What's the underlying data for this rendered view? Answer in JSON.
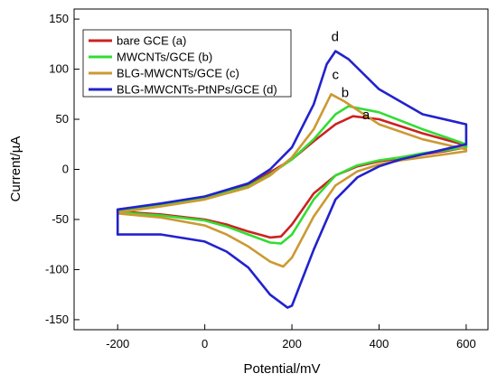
{
  "chart_data": {
    "type": "line",
    "title": "",
    "xlabel": "Potential/mV",
    "ylabel": "Current/µA",
    "xlim": [
      -300,
      650
    ],
    "ylim": [
      -160,
      160
    ],
    "xticks": [
      -200,
      0,
      200,
      400,
      600
    ],
    "yticks": [
      -150,
      -100,
      -50,
      0,
      50,
      100,
      150
    ],
    "grid": false,
    "legend_position": "top-left",
    "series": [
      {
        "name": "bare GCE (a)",
        "label": "a",
        "color": "#cc2222",
        "x": [
          -200,
          -100,
          0,
          100,
          150,
          200,
          250,
          300,
          340,
          400,
          500,
          600,
          600,
          550,
          500,
          450,
          400,
          350,
          300,
          250,
          200,
          175,
          150,
          100,
          50,
          0,
          -100,
          -200
        ],
        "y": [
          -40,
          -35,
          -28,
          -15,
          -3,
          10,
          28,
          45,
          53,
          50,
          36,
          24,
          22,
          18,
          15,
          11,
          8,
          3,
          -6,
          -24,
          -55,
          -67,
          -68,
          -62,
          -55,
          -50,
          -45,
          -42
        ]
      },
      {
        "name": "MWCNTs/GCE (b)",
        "label": "b",
        "color": "#33dd33",
        "x": [
          -200,
          -100,
          0,
          100,
          150,
          200,
          250,
          300,
          330,
          400,
          500,
          600,
          600,
          550,
          500,
          450,
          400,
          350,
          300,
          250,
          200,
          175,
          150,
          100,
          50,
          0,
          -100,
          -200
        ],
        "y": [
          -42,
          -36,
          -29,
          -17,
          -5,
          10,
          30,
          55,
          63,
          57,
          40,
          25,
          22,
          19,
          16,
          12,
          9,
          4,
          -6,
          -30,
          -65,
          -74,
          -73,
          -65,
          -57,
          -51,
          -46,
          -43
        ]
      },
      {
        "name": "BLG-MWCNTs/GCE (c)",
        "label": "c",
        "color": "#cc9933",
        "x": [
          -200,
          -100,
          0,
          100,
          150,
          200,
          250,
          290,
          320,
          400,
          500,
          600,
          600,
          550,
          500,
          450,
          400,
          350,
          300,
          250,
          200,
          180,
          150,
          100,
          50,
          0,
          -100,
          -200
        ],
        "y": [
          -43,
          -37,
          -30,
          -18,
          -6,
          12,
          40,
          75,
          68,
          45,
          30,
          20,
          18,
          15,
          12,
          9,
          5,
          -2,
          -16,
          -47,
          -88,
          -97,
          -92,
          -77,
          -65,
          -56,
          -48,
          -44
        ]
      },
      {
        "name": "BLG-MWCNTs-PtNPs/GCE (d)",
        "label": "d",
        "color": "#2222cc",
        "x": [
          -200,
          -100,
          0,
          100,
          150,
          200,
          250,
          280,
          300,
          330,
          400,
          500,
          600,
          600,
          550,
          500,
          450,
          400,
          350,
          300,
          250,
          200,
          190,
          150,
          100,
          50,
          0,
          -100,
          -200
        ],
        "y": [
          -40,
          -34,
          -27,
          -14,
          0,
          22,
          65,
          105,
          118,
          110,
          80,
          55,
          45,
          25,
          20,
          15,
          10,
          3,
          -8,
          -30,
          -80,
          -136,
          -138,
          -125,
          -98,
          -82,
          -72,
          -65,
          -65
        ]
      }
    ]
  }
}
